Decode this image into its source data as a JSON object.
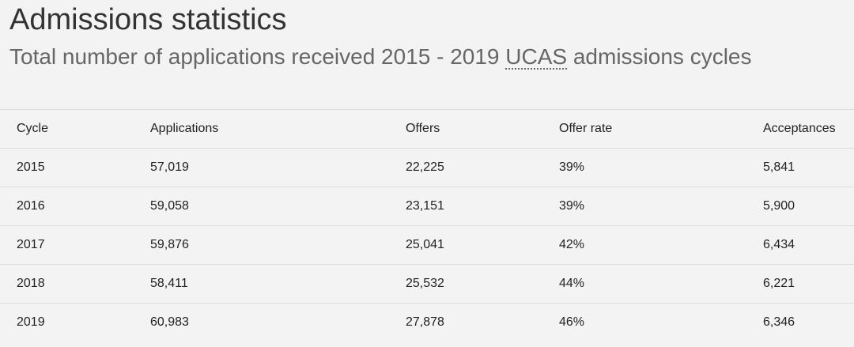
{
  "heading": {
    "title": "Admissions statistics",
    "subtitle_before": "Total number of applications received 2015 - 2019 ",
    "subtitle_abbr": "UCAS",
    "subtitle_after": " admissions cycles"
  },
  "table": {
    "columns": [
      "Cycle",
      "Applications",
      "Offers",
      "Offer rate",
      "Acceptances"
    ],
    "rows": [
      [
        "2015",
        "57,019",
        "22,225",
        "39%",
        "5,841"
      ],
      [
        "2016",
        "59,058",
        "23,151",
        "39%",
        "5,900"
      ],
      [
        "2017",
        "59,876",
        "25,041",
        "42%",
        "6,434"
      ],
      [
        "2018",
        "58,411",
        "25,532",
        "44%",
        "6,221"
      ],
      [
        "2019",
        "60,983",
        "27,878",
        "46%",
        "6,346"
      ]
    ]
  }
}
